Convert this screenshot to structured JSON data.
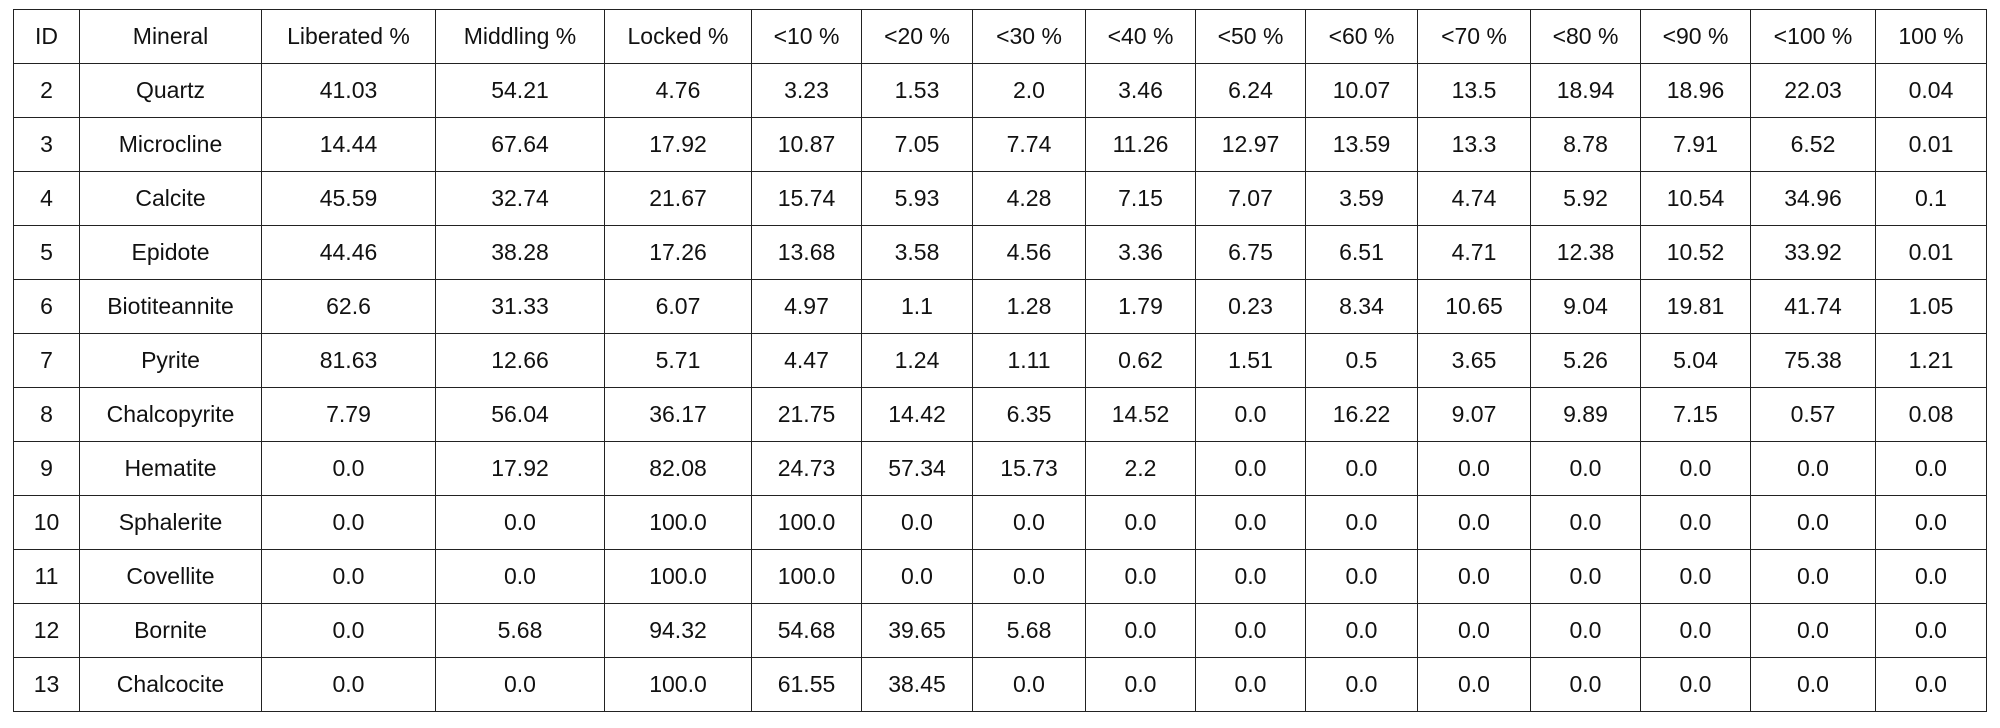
{
  "table": {
    "header": [
      "ID",
      "Mineral",
      "Liberated %",
      "Middling %",
      "Locked %",
      "<10 %",
      "<20 %",
      "<30 %",
      "<40 %",
      "<50 %",
      "<60 %",
      "<70 %",
      "<80 %",
      "<90 %",
      "<100 %",
      "100 %"
    ],
    "rows": [
      [
        "2",
        "Quartz",
        "41.03",
        "54.21",
        "4.76",
        "3.23",
        "1.53",
        "2.0",
        "3.46",
        "6.24",
        "10.07",
        "13.5",
        "18.94",
        "18.96",
        "22.03",
        "0.04"
      ],
      [
        "3",
        "Microcline",
        "14.44",
        "67.64",
        "17.92",
        "10.87",
        "7.05",
        "7.74",
        "11.26",
        "12.97",
        "13.59",
        "13.3",
        "8.78",
        "7.91",
        "6.52",
        "0.01"
      ],
      [
        "4",
        "Calcite",
        "45.59",
        "32.74",
        "21.67",
        "15.74",
        "5.93",
        "4.28",
        "7.15",
        "7.07",
        "3.59",
        "4.74",
        "5.92",
        "10.54",
        "34.96",
        "0.1"
      ],
      [
        "5",
        "Epidote",
        "44.46",
        "38.28",
        "17.26",
        "13.68",
        "3.58",
        "4.56",
        "3.36",
        "6.75",
        "6.51",
        "4.71",
        "12.38",
        "10.52",
        "33.92",
        "0.01"
      ],
      [
        "6",
        "Biotiteannite",
        "62.6",
        "31.33",
        "6.07",
        "4.97",
        "1.1",
        "1.28",
        "1.79",
        "0.23",
        "8.34",
        "10.65",
        "9.04",
        "19.81",
        "41.74",
        "1.05"
      ],
      [
        "7",
        "Pyrite",
        "81.63",
        "12.66",
        "5.71",
        "4.47",
        "1.24",
        "1.11",
        "0.62",
        "1.51",
        "0.5",
        "3.65",
        "5.26",
        "5.04",
        "75.38",
        "1.21"
      ],
      [
        "8",
        "Chalcopyrite",
        "7.79",
        "56.04",
        "36.17",
        "21.75",
        "14.42",
        "6.35",
        "14.52",
        "0.0",
        "16.22",
        "9.07",
        "9.89",
        "7.15",
        "0.57",
        "0.08"
      ],
      [
        "9",
        "Hematite",
        "0.0",
        "17.92",
        "82.08",
        "24.73",
        "57.34",
        "15.73",
        "2.2",
        "0.0",
        "0.0",
        "0.0",
        "0.0",
        "0.0",
        "0.0",
        "0.0"
      ],
      [
        "10",
        "Sphalerite",
        "0.0",
        "0.0",
        "100.0",
        "100.0",
        "0.0",
        "0.0",
        "0.0",
        "0.0",
        "0.0",
        "0.0",
        "0.0",
        "0.0",
        "0.0",
        "0.0"
      ],
      [
        "11",
        "Covellite",
        "0.0",
        "0.0",
        "100.0",
        "100.0",
        "0.0",
        "0.0",
        "0.0",
        "0.0",
        "0.0",
        "0.0",
        "0.0",
        "0.0",
        "0.0",
        "0.0"
      ],
      [
        "12",
        "Bornite",
        "0.0",
        "5.68",
        "94.32",
        "54.68",
        "39.65",
        "5.68",
        "0.0",
        "0.0",
        "0.0",
        "0.0",
        "0.0",
        "0.0",
        "0.0",
        "0.0"
      ],
      [
        "13",
        "Chalcocite",
        "0.0",
        "0.0",
        "100.0",
        "61.55",
        "38.45",
        "0.0",
        "0.0",
        "0.0",
        "0.0",
        "0.0",
        "0.0",
        "0.0",
        "0.0",
        "0.0"
      ]
    ]
  }
}
